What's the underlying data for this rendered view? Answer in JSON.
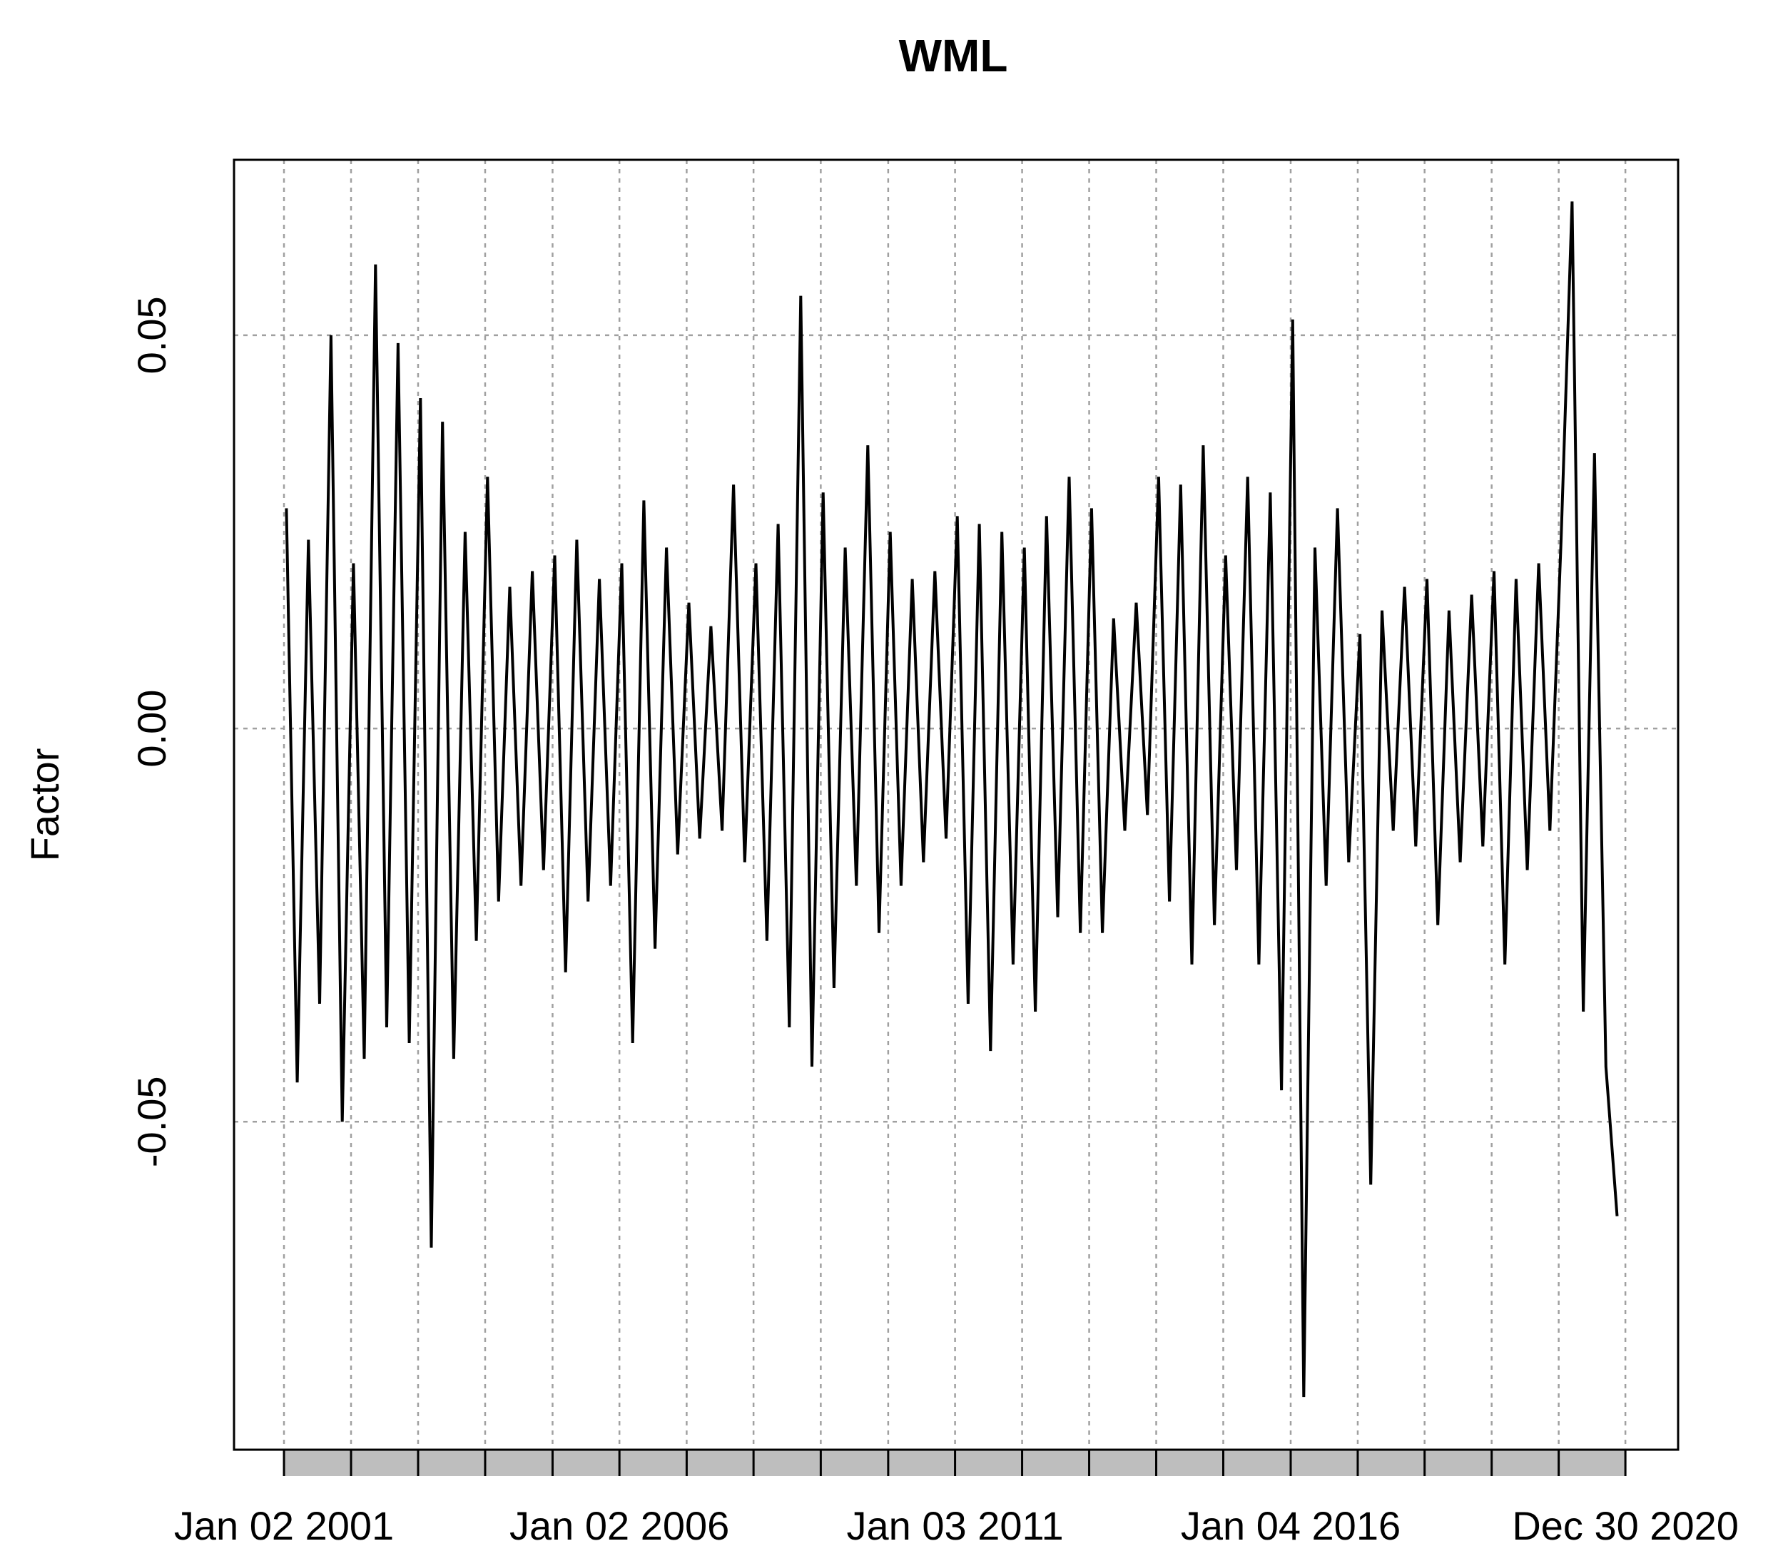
{
  "chart_data": {
    "type": "line",
    "title": "WML",
    "y_label": "Factor",
    "xlim": [
      "2000-04-05",
      "2021-10-13"
    ],
    "ylim": [
      -0.0917,
      0.0723
    ],
    "yticks": [
      {
        "value": -0.05,
        "label": "-0.05"
      },
      {
        "value": 0,
        "label": "0.00"
      },
      {
        "value": 0.05,
        "label": "0.05"
      }
    ],
    "xticks": [
      {
        "value": "2001-01-02",
        "label": "Jan 02 2001"
      },
      {
        "value": "2006-01-02",
        "label": "Jan 02 2006"
      },
      {
        "value": "2011-01-03",
        "label": "Jan 03 2011"
      },
      {
        "value": "2016-01-04",
        "label": "Jan 04 2016"
      },
      {
        "value": "2020-12-30",
        "label": "Dec 30 2020"
      }
    ],
    "xgrid": [
      "2002-01-02",
      "2003-01-02",
      "2004-01-02",
      "2005-01-03",
      "2007-01-03",
      "2008-01-02",
      "2009-01-02",
      "2010-01-04",
      "2012-01-03",
      "2013-01-02",
      "2014-01-02",
      "2015-01-02",
      "2017-01-03",
      "2018-01-02",
      "2019-01-02",
      "2020-01-02"
    ],
    "grid": true,
    "series": [
      {
        "color": "#000000",
        "x": [
          "2001-01-15",
          "2001-03-15",
          "2001-05-15",
          "2001-07-15",
          "2001-09-15",
          "2001-11-15",
          "2002-01-15",
          "2002-03-15",
          "2002-05-15",
          "2002-07-15",
          "2002-09-15",
          "2002-11-15",
          "2003-01-15",
          "2003-03-15",
          "2003-05-15",
          "2003-07-15",
          "2003-09-15",
          "2003-11-15",
          "2004-01-15",
          "2004-03-15",
          "2004-05-15",
          "2004-07-15",
          "2004-09-15",
          "2004-11-15",
          "2005-01-15",
          "2005-03-15",
          "2005-05-15",
          "2005-07-15",
          "2005-09-15",
          "2005-11-15",
          "2006-01-15",
          "2006-03-15",
          "2006-05-15",
          "2006-07-15",
          "2006-09-15",
          "2006-11-15",
          "2007-01-15",
          "2007-03-15",
          "2007-05-15",
          "2007-07-15",
          "2007-09-15",
          "2007-11-15",
          "2008-01-15",
          "2008-03-15",
          "2008-05-15",
          "2008-07-15",
          "2008-09-15",
          "2008-11-15",
          "2009-01-15",
          "2009-03-15",
          "2009-05-15",
          "2009-07-15",
          "2009-09-15",
          "2009-11-15",
          "2010-01-15",
          "2010-03-15",
          "2010-05-15",
          "2010-07-15",
          "2010-09-15",
          "2010-11-15",
          "2011-01-15",
          "2011-03-15",
          "2011-05-15",
          "2011-07-15",
          "2011-09-15",
          "2011-11-15",
          "2012-01-15",
          "2012-03-15",
          "2012-05-15",
          "2012-07-15",
          "2012-09-15",
          "2012-11-15",
          "2013-01-15",
          "2013-03-15",
          "2013-05-15",
          "2013-07-15",
          "2013-09-15",
          "2013-11-15",
          "2014-01-15",
          "2014-03-15",
          "2014-05-15",
          "2014-07-15",
          "2014-09-15",
          "2014-11-15",
          "2015-01-15",
          "2015-03-15",
          "2015-05-15",
          "2015-07-15",
          "2015-09-15",
          "2015-11-15",
          "2016-01-15",
          "2016-03-15",
          "2016-05-15",
          "2016-07-15",
          "2016-09-15",
          "2016-11-15",
          "2017-01-15",
          "2017-03-15",
          "2017-05-15",
          "2017-07-15",
          "2017-09-15",
          "2017-11-15",
          "2018-01-15",
          "2018-03-15",
          "2018-05-15",
          "2018-07-15",
          "2018-09-15",
          "2018-11-15",
          "2019-01-15",
          "2019-03-15",
          "2019-05-15",
          "2019-07-15",
          "2019-09-15",
          "2019-11-15",
          "2020-01-15",
          "2020-03-15",
          "2020-05-15",
          "2020-07-15",
          "2020-09-15",
          "2020-11-15"
        ],
        "values": [
          0.028,
          -0.045,
          0.024,
          -0.035,
          0.05,
          -0.05,
          0.021,
          -0.042,
          0.059,
          -0.038,
          0.049,
          -0.04,
          0.042,
          -0.066,
          0.039,
          -0.042,
          0.025,
          -0.027,
          0.032,
          -0.022,
          0.018,
          -0.02,
          0.02,
          -0.018,
          0.022,
          -0.031,
          0.024,
          -0.022,
          0.019,
          -0.02,
          0.021,
          -0.04,
          0.029,
          -0.028,
          0.023,
          -0.016,
          0.016,
          -0.014,
          0.013,
          -0.013,
          0.031,
          -0.017,
          0.021,
          -0.027,
          0.026,
          -0.038,
          0.055,
          -0.043,
          0.03,
          -0.033,
          0.023,
          -0.02,
          0.036,
          -0.026,
          0.025,
          -0.02,
          0.019,
          -0.017,
          0.02,
          -0.014,
          0.027,
          -0.035,
          0.026,
          -0.041,
          0.025,
          -0.03,
          0.023,
          -0.036,
          0.027,
          -0.024,
          0.032,
          -0.026,
          0.028,
          -0.026,
          0.014,
          -0.013,
          0.016,
          -0.011,
          0.032,
          -0.022,
          0.031,
          -0.03,
          0.036,
          -0.025,
          0.022,
          -0.018,
          0.032,
          -0.03,
          0.03,
          -0.046,
          0.052,
          -0.085,
          0.023,
          -0.02,
          0.028,
          -0.017,
          0.012,
          -0.058,
          0.015,
          -0.013,
          0.018,
          -0.015,
          0.019,
          -0.025,
          0.015,
          -0.017,
          0.017,
          -0.015,
          0.02,
          -0.03,
          0.019,
          -0.018,
          0.021,
          -0.013,
          0.024,
          0.067,
          -0.036,
          0.035,
          -0.043,
          -0.062
        ]
      }
    ]
  }
}
